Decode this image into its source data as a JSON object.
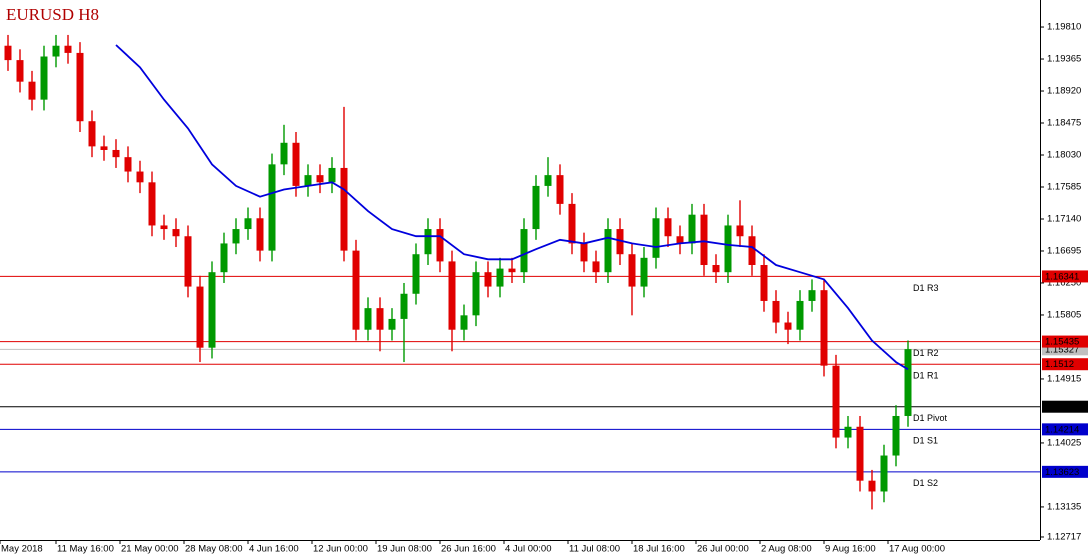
{
  "chart_data": {
    "type": "candlestick",
    "title": "EURUSD H8",
    "bull_color": "#009900",
    "bear_color": "#e00000",
    "x": [
      2,
      5,
      8,
      11,
      14,
      17,
      20,
      23,
      26,
      29,
      32,
      35,
      38,
      41,
      44,
      47,
      50,
      53,
      56,
      59,
      62,
      65,
      68,
      71,
      74,
      77,
      80,
      83,
      86,
      89,
      92,
      95,
      98,
      101,
      104,
      107,
      110,
      113,
      116,
      119,
      122,
      125,
      128,
      131,
      134,
      137,
      140,
      143,
      146,
      149,
      152,
      155,
      158,
      161,
      164,
      167,
      170,
      173,
      176,
      179,
      182,
      185,
      188,
      191,
      194,
      197,
      200,
      203,
      206,
      209,
      212,
      215,
      218,
      221,
      224,
      227
    ],
    "open": [
      1.1955,
      1.1935,
      1.1905,
      1.188,
      1.194,
      1.1955,
      1.1945,
      1.185,
      1.1815,
      1.181,
      1.18,
      1.178,
      1.1765,
      1.1705,
      1.17,
      1.169,
      1.162,
      1.1535,
      1.164,
      1.168,
      1.17,
      1.1715,
      1.167,
      1.179,
      1.182,
      1.176,
      1.1775,
      1.1765,
      1.1785,
      1.167,
      1.156,
      1.159,
      1.156,
      1.1575,
      1.161,
      1.1665,
      1.17,
      1.1655,
      1.156,
      1.158,
      1.164,
      1.162,
      1.1645,
      1.164,
      1.17,
      1.176,
      1.1775,
      1.1735,
      1.168,
      1.1655,
      1.164,
      1.17,
      1.1665,
      1.162,
      1.166,
      1.1715,
      1.169,
      1.168,
      1.172,
      1.165,
      1.164,
      1.1705,
      1.169,
      1.165,
      1.16,
      1.157,
      1.156,
      1.16,
      1.1615,
      1.151,
      1.141,
      1.1425,
      1.135,
      1.1335,
      1.1385,
      1.144
    ],
    "high": [
      1.197,
      1.195,
      1.192,
      1.1955,
      1.197,
      1.197,
      1.196,
      1.1865,
      1.183,
      1.1825,
      1.1815,
      1.1795,
      1.178,
      1.172,
      1.1715,
      1.1705,
      1.1635,
      1.1655,
      1.1695,
      1.1715,
      1.173,
      1.173,
      1.1805,
      1.1845,
      1.1835,
      1.179,
      1.179,
      1.18,
      1.187,
      1.1685,
      1.1605,
      1.1605,
      1.159,
      1.1625,
      1.168,
      1.1715,
      1.1715,
      1.167,
      1.1595,
      1.1655,
      1.1655,
      1.166,
      1.166,
      1.1715,
      1.1775,
      1.18,
      1.179,
      1.175,
      1.1695,
      1.167,
      1.1715,
      1.1715,
      1.168,
      1.1675,
      1.173,
      1.173,
      1.1705,
      1.1735,
      1.1735,
      1.1665,
      1.172,
      1.174,
      1.1705,
      1.1665,
      1.1615,
      1.1585,
      1.1615,
      1.163,
      1.163,
      1.1525,
      1.144,
      1.144,
      1.1365,
      1.14,
      1.1455,
      1.1545
    ],
    "low": [
      1.192,
      1.189,
      1.1865,
      1.1865,
      1.1925,
      1.193,
      1.1835,
      1.18,
      1.1795,
      1.1785,
      1.1765,
      1.175,
      1.169,
      1.1685,
      1.1675,
      1.1605,
      1.1515,
      1.152,
      1.1625,
      1.1665,
      1.1685,
      1.1655,
      1.1655,
      1.1775,
      1.1745,
      1.1745,
      1.175,
      1.175,
      1.1655,
      1.1545,
      1.1545,
      1.153,
      1.1545,
      1.1515,
      1.1595,
      1.165,
      1.164,
      1.153,
      1.1545,
      1.1565,
      1.1605,
      1.1605,
      1.1625,
      1.1625,
      1.1685,
      1.1745,
      1.172,
      1.1665,
      1.164,
      1.1625,
      1.1625,
      1.165,
      1.158,
      1.1605,
      1.1645,
      1.1675,
      1.1665,
      1.1665,
      1.1635,
      1.1625,
      1.1625,
      1.1675,
      1.1635,
      1.1585,
      1.1555,
      1.154,
      1.1545,
      1.1585,
      1.1495,
      1.1395,
      1.1395,
      1.1335,
      1.131,
      1.132,
      1.137,
      1.1425
    ],
    "close": [
      1.1935,
      1.1905,
      1.188,
      1.194,
      1.1955,
      1.1945,
      1.185,
      1.1815,
      1.181,
      1.18,
      1.178,
      1.1765,
      1.1705,
      1.17,
      1.169,
      1.162,
      1.1535,
      1.164,
      1.168,
      1.17,
      1.1715,
      1.167,
      1.179,
      1.182,
      1.176,
      1.1775,
      1.1765,
      1.1785,
      1.167,
      1.156,
      1.159,
      1.156,
      1.1575,
      1.161,
      1.1665,
      1.17,
      1.1655,
      1.156,
      1.158,
      1.164,
      1.162,
      1.1645,
      1.164,
      1.17,
      1.176,
      1.1775,
      1.1735,
      1.168,
      1.1655,
      1.164,
      1.17,
      1.1665,
      1.162,
      1.166,
      1.1715,
      1.169,
      1.168,
      1.172,
      1.165,
      1.164,
      1.1705,
      1.169,
      1.165,
      1.16,
      1.157,
      1.156,
      1.16,
      1.1615,
      1.151,
      1.141,
      1.1425,
      1.135,
      1.1335,
      1.1385,
      1.144,
      1.1533
    ],
    "ma": {
      "color": "#0000dd",
      "x": [
        29,
        35,
        41,
        47,
        53,
        59,
        65,
        71,
        77,
        83,
        86,
        92,
        98,
        104,
        110,
        116,
        122,
        128,
        134,
        140,
        146,
        152,
        158,
        164,
        170,
        176,
        182,
        188,
        194,
        200,
        206,
        212,
        218,
        224,
        227
      ],
      "values": [
        1.1956,
        1.1925,
        1.188,
        1.184,
        1.179,
        1.176,
        1.1745,
        1.1755,
        1.176,
        1.1765,
        1.1755,
        1.1725,
        1.17,
        1.169,
        1.169,
        1.1665,
        1.1658,
        1.1658,
        1.1672,
        1.1685,
        1.168,
        1.1688,
        1.168,
        1.1675,
        1.168,
        1.1683,
        1.1678,
        1.1675,
        1.165,
        1.164,
        1.163,
        1.159,
        1.1545,
        1.1515,
        1.1505
      ]
    },
    "levels": [
      {
        "name": "D1 R3",
        "value": 1.16341,
        "color": "#e00000"
      },
      {
        "name": "D1 R2",
        "value": 1.15435,
        "color": "#e00000"
      },
      {
        "name": "D1 R1",
        "value": 1.1512,
        "color": "#e00000"
      },
      {
        "name": "D1 Pivot",
        "value": 1.14529,
        "color": "#000000"
      },
      {
        "name": "D1 S1",
        "value": 1.14214,
        "color": "#0000cc"
      },
      {
        "name": "D1 S2",
        "value": 1.13623,
        "color": "#0000cc"
      }
    ],
    "current_price": 1.15327,
    "current_price_color": "#c0c0c0",
    "xlim": [
      0,
      260
    ],
    "xticks": [
      {
        "value": 0,
        "label": "May 2018"
      },
      {
        "value": 14,
        "label": "11 May 16:00"
      },
      {
        "value": 30,
        "label": "21 May 00:00"
      },
      {
        "value": 46,
        "label": "28 May 08:00"
      },
      {
        "value": 62,
        "label": "4 Jun 16:00"
      },
      {
        "value": 78,
        "label": "12 Jun 00:00"
      },
      {
        "value": 94,
        "label": "19 Jun 08:00"
      },
      {
        "value": 110,
        "label": "26 Jun 16:00"
      },
      {
        "value": 126,
        "label": "4 Jul 00:00"
      },
      {
        "value": 142,
        "label": "11 Jul 08:00"
      },
      {
        "value": 158,
        "label": "18 Jul 16:00"
      },
      {
        "value": 174,
        "label": "26 Jul 00:00"
      },
      {
        "value": 190,
        "label": "2 Aug 08:00"
      },
      {
        "value": 206,
        "label": "9 Aug 16:00"
      },
      {
        "value": 222,
        "label": "17 Aug 00:00"
      }
    ],
    "ylim": [
      1.12675,
      1.20186
    ],
    "yticks": [
      {
        "value": 1.1981,
        "label": "1.19810"
      },
      1.19365,
      {
        "value": 1.1892,
        "label": "1.18920"
      },
      1.18475,
      {
        "value": 1.1803,
        "label": "1.18030"
      },
      1.17585,
      {
        "value": 1.1714,
        "label": "1.17140"
      },
      1.16695,
      {
        "value": 1.1625,
        "label": "1.16250"
      },
      1.15805,
      1.14915,
      1.14025,
      1.13135,
      1.12717
    ]
  }
}
